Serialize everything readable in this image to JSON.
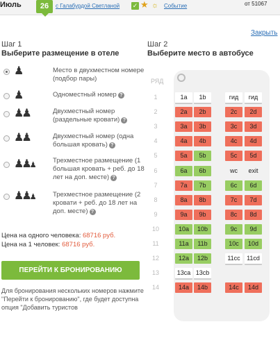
{
  "topbar": {
    "month": "Июль",
    "day": "26",
    "host_link": "с Галабурдой Светланой",
    "event_link": "Событие",
    "price_from": "от 51067"
  },
  "close_link": "Закрыть",
  "step1": {
    "title": "Шаг 1",
    "subtitle": "Выберите размещение в отеле",
    "options": [
      {
        "label": "Место в двухместном номере (подбор пары)",
        "checked": true
      },
      {
        "label": "Одноместный номер",
        "checked": false
      },
      {
        "label": "Двухместный номер (раздельные кровати)",
        "checked": false
      },
      {
        "label": "Двухместный номер (одна большая кровать)",
        "checked": false
      },
      {
        "label": "Трехместное размещение (1 большая кровать + реб. до 18 лет на доп. месте)",
        "checked": false
      },
      {
        "label": "Трехместное размещение (2 кровати + реб. до 18 лет на доп. месте)",
        "checked": false
      }
    ],
    "price_one_person_label": "Цена на одного человека:",
    "price_one_person_value": "68716 руб.",
    "price_per_person_label": "Цена на 1 человек:",
    "price_per_person_value": "68716 руб.",
    "book_button": "ПЕРЕЙТИ К БРОНИРОВАНИЮ",
    "note": "Для бронирования нескольких номеров нажмите \"Перейти к бронированию\", где будет доступна опция \"Добавить туристов"
  },
  "step2": {
    "title": "Шаг 2",
    "subtitle": "Выберите место в автобусе",
    "row_header": "РЯД",
    "colors": {
      "taken": "#ef6f5b",
      "free": "#98cd62",
      "guide": "#ffffff"
    },
    "rows": [
      {
        "num": "1",
        "seats": [
          {
            "label": "1a",
            "status": "white"
          },
          {
            "label": "1b",
            "status": "white"
          },
          {
            "label": "гид",
            "status": "white"
          },
          {
            "label": "гид",
            "status": "white"
          }
        ]
      },
      {
        "num": "2",
        "seats": [
          {
            "label": "2a",
            "status": "red"
          },
          {
            "label": "2b",
            "status": "red"
          },
          {
            "label": "2c",
            "status": "red"
          },
          {
            "label": "2d",
            "status": "red"
          }
        ]
      },
      {
        "num": "3",
        "seats": [
          {
            "label": "3a",
            "status": "red"
          },
          {
            "label": "3b",
            "status": "red"
          },
          {
            "label": "3c",
            "status": "red"
          },
          {
            "label": "3d",
            "status": "red"
          }
        ]
      },
      {
        "num": "4",
        "seats": [
          {
            "label": "4a",
            "status": "red"
          },
          {
            "label": "4b",
            "status": "red"
          },
          {
            "label": "4c",
            "status": "red"
          },
          {
            "label": "4d",
            "status": "red"
          }
        ]
      },
      {
        "num": "5",
        "seats": [
          {
            "label": "5a",
            "status": "red"
          },
          {
            "label": "5b",
            "status": "green"
          },
          {
            "label": "5c",
            "status": "red"
          },
          {
            "label": "5d",
            "status": "red"
          }
        ]
      },
      {
        "num": "6",
        "seats": [
          {
            "label": "6a",
            "status": "green"
          },
          {
            "label": "6b",
            "status": "green"
          },
          {
            "label": "wc",
            "status": "plain"
          },
          {
            "label": "exit",
            "status": "plain"
          }
        ]
      },
      {
        "num": "7",
        "seats": [
          {
            "label": "7a",
            "status": "red"
          },
          {
            "label": "7b",
            "status": "green"
          },
          {
            "label": "6c",
            "status": "green"
          },
          {
            "label": "6d",
            "status": "green"
          }
        ]
      },
      {
        "num": "8",
        "seats": [
          {
            "label": "8a",
            "status": "red"
          },
          {
            "label": "8b",
            "status": "red"
          },
          {
            "label": "7c",
            "status": "red"
          },
          {
            "label": "7d",
            "status": "red"
          }
        ]
      },
      {
        "num": "9",
        "seats": [
          {
            "label": "9a",
            "status": "red"
          },
          {
            "label": "9b",
            "status": "red"
          },
          {
            "label": "8c",
            "status": "red"
          },
          {
            "label": "8d",
            "status": "red"
          }
        ]
      },
      {
        "num": "10",
        "seats": [
          {
            "label": "10a",
            "status": "green"
          },
          {
            "label": "10b",
            "status": "green"
          },
          {
            "label": "9c",
            "status": "green"
          },
          {
            "label": "9d",
            "status": "green"
          }
        ]
      },
      {
        "num": "11",
        "seats": [
          {
            "label": "11a",
            "status": "green"
          },
          {
            "label": "11b",
            "status": "green"
          },
          {
            "label": "10c",
            "status": "green"
          },
          {
            "label": "10d",
            "status": "green"
          }
        ]
      },
      {
        "num": "12",
        "seats": [
          {
            "label": "12a",
            "status": "green"
          },
          {
            "label": "12b",
            "status": "green"
          },
          {
            "label": "11cc",
            "status": "white"
          },
          {
            "label": "11cd",
            "status": "white"
          }
        ]
      },
      {
        "num": "13",
        "seats": [
          {
            "label": "13ca",
            "status": "white"
          },
          {
            "label": "13cb",
            "status": "white"
          },
          {
            "label": "",
            "status": "none"
          },
          {
            "label": "",
            "status": "none"
          }
        ]
      },
      {
        "num": "14",
        "seats": [
          {
            "label": "14a",
            "status": "red"
          },
          {
            "label": "14b",
            "status": "red"
          },
          {
            "label": "14c",
            "status": "red"
          },
          {
            "label": "14d",
            "status": "red"
          }
        ]
      }
    ]
  }
}
